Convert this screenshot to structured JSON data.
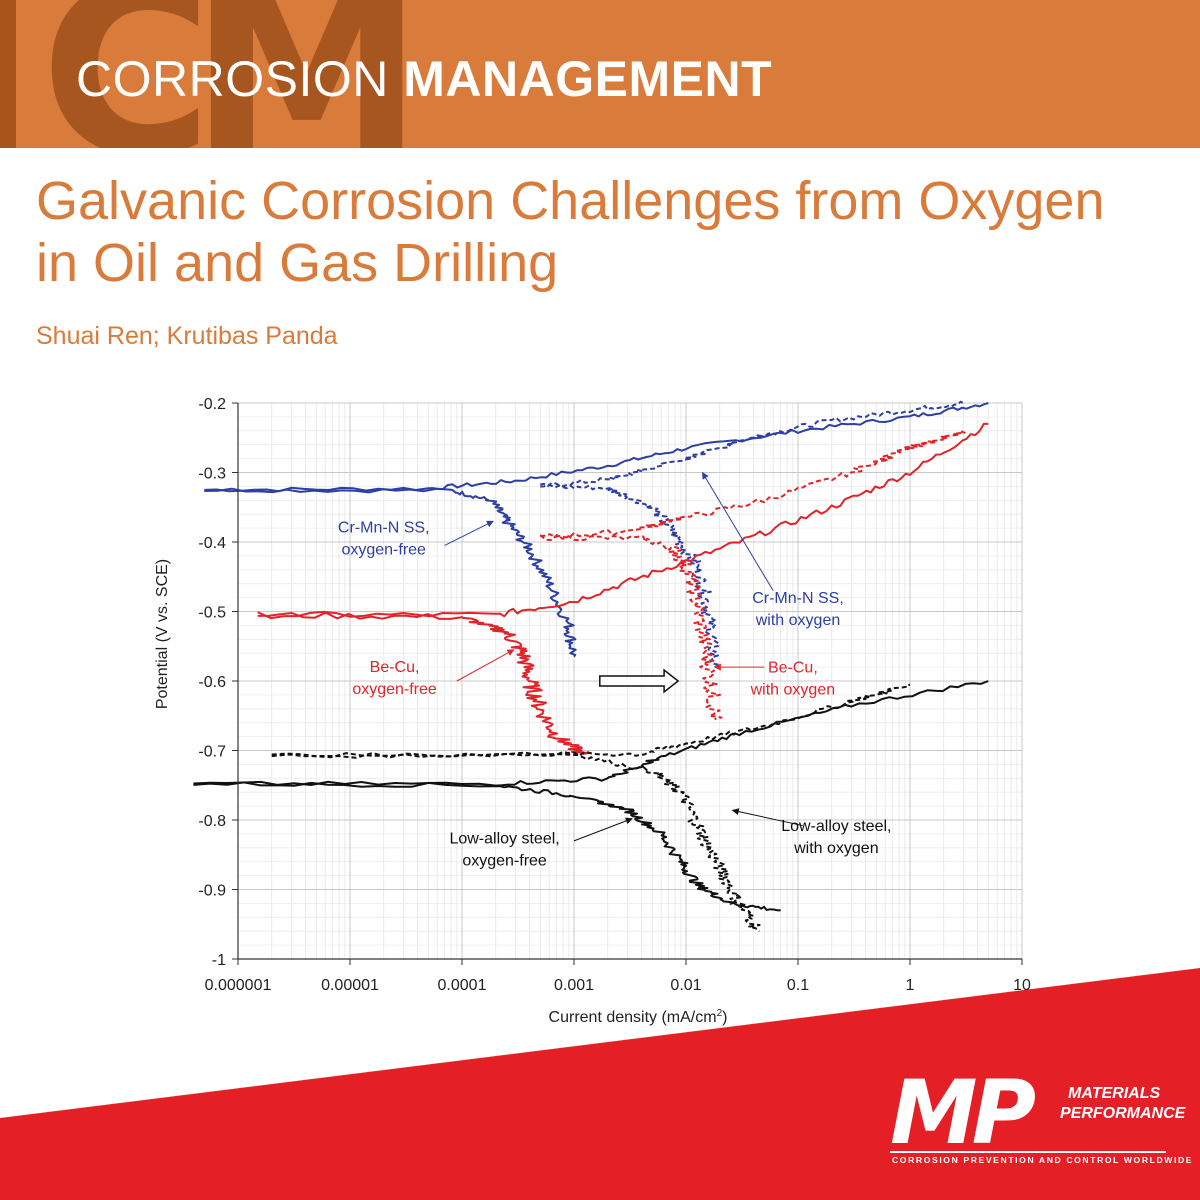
{
  "header": {
    "logo_letters": "CM",
    "title_light": "CORROSION",
    "title_bold": "MANAGEMENT"
  },
  "article": {
    "title": "Galvanic Corrosion Challenges from Oxygen in Oil and Gas Drilling",
    "authors": "Shuai Ren; Krutibas Panda"
  },
  "chart_data": {
    "type": "line",
    "xscale": "log",
    "xlabel": "Current density (mA/cm",
    "xlabel_sup": "2",
    "xlabel_end": ")",
    "ylabel": "Potential (V vs. SCE)",
    "xlim": [
      1e-06,
      10
    ],
    "ylim": [
      -1,
      -0.2
    ],
    "xticks": [
      {
        "value": 1e-06,
        "label": "0.000001"
      },
      {
        "value": 1e-05,
        "label": "0.00001"
      },
      {
        "value": 0.0001,
        "label": "0.0001"
      },
      {
        "value": 0.001,
        "label": "0.001"
      },
      {
        "value": 0.01,
        "label": "0.01"
      },
      {
        "value": 0.1,
        "label": "0.1"
      },
      {
        "value": 1,
        "label": "1"
      },
      {
        "value": 10,
        "label": "10"
      }
    ],
    "yticks": [
      {
        "value": -0.2,
        "label": "-0.2"
      },
      {
        "value": -0.3,
        "label": "-0.3"
      },
      {
        "value": -0.4,
        "label": "-0.4"
      },
      {
        "value": -0.5,
        "label": "-0.5"
      },
      {
        "value": -0.6,
        "label": "-0.6"
      },
      {
        "value": -0.7,
        "label": "-0.7"
      },
      {
        "value": -0.8,
        "label": "-0.8"
      },
      {
        "value": -0.9,
        "label": "-0.9"
      },
      {
        "value": -1,
        "label": "-1"
      }
    ],
    "grid": true,
    "series": [
      {
        "name": "Cr-Mn-N SS, oxygen-free",
        "color": "#2e3fa3",
        "dash": false,
        "noise": 0.006,
        "anodic": [
          [
            5e-07,
            -0.325
          ],
          [
            5e-05,
            -0.323
          ],
          [
            0.0003,
            -0.312
          ],
          [
            0.002,
            -0.29
          ],
          [
            0.01,
            -0.265
          ],
          [
            0.1,
            -0.24
          ],
          [
            1,
            -0.22
          ],
          [
            5,
            -0.2
          ]
        ],
        "cathodic": [
          [
            5e-07,
            -0.325
          ],
          [
            8e-05,
            -0.326
          ],
          [
            0.00018,
            -0.34
          ],
          [
            0.00025,
            -0.37
          ],
          [
            0.0004,
            -0.41
          ],
          [
            0.0006,
            -0.46
          ],
          [
            0.0009,
            -0.52
          ],
          [
            0.001,
            -0.565
          ]
        ]
      },
      {
        "name": "Cr-Mn-N SS, with oxygen",
        "color": "#2e3fa3",
        "dash": true,
        "noise": 0.007,
        "anodic": [
          [
            0.0005,
            -0.32
          ],
          [
            0.002,
            -0.31
          ],
          [
            0.006,
            -0.29
          ],
          [
            0.02,
            -0.265
          ],
          [
            0.05,
            -0.245
          ],
          [
            0.2,
            -0.225
          ],
          [
            1,
            -0.21
          ],
          [
            3,
            -0.2
          ]
        ],
        "cathodic": [
          [
            0.0005,
            -0.32
          ],
          [
            0.002,
            -0.322
          ],
          [
            0.005,
            -0.35
          ],
          [
            0.008,
            -0.39
          ],
          [
            0.012,
            -0.43
          ],
          [
            0.015,
            -0.48
          ],
          [
            0.017,
            -0.53
          ],
          [
            0.018,
            -0.58
          ]
        ]
      },
      {
        "name": "Be-Cu, oxygen-free",
        "color": "#e0242a",
        "dash": false,
        "noise": 0.009,
        "anodic": [
          [
            1.5e-06,
            -0.505
          ],
          [
            0.0002,
            -0.505
          ],
          [
            0.001,
            -0.485
          ],
          [
            0.005,
            -0.445
          ],
          [
            0.03,
            -0.4
          ],
          [
            0.2,
            -0.35
          ],
          [
            1,
            -0.3
          ],
          [
            5,
            -0.23
          ]
        ],
        "cathodic": [
          [
            1.5e-06,
            -0.505
          ],
          [
            0.0001,
            -0.508
          ],
          [
            0.00025,
            -0.53
          ],
          [
            0.00035,
            -0.56
          ],
          [
            0.0004,
            -0.6
          ],
          [
            0.0005,
            -0.64
          ],
          [
            0.0007,
            -0.68
          ],
          [
            0.0012,
            -0.705
          ]
        ]
      },
      {
        "name": "Be-Cu, with oxygen",
        "color": "#e0242a",
        "dash": true,
        "noise": 0.008,
        "anodic": [
          [
            0.0005,
            -0.393
          ],
          [
            0.003,
            -0.385
          ],
          [
            0.01,
            -0.365
          ],
          [
            0.05,
            -0.34
          ],
          [
            0.3,
            -0.3
          ],
          [
            1,
            -0.265
          ],
          [
            3,
            -0.24
          ]
        ],
        "cathodic": [
          [
            0.0005,
            -0.393
          ],
          [
            0.004,
            -0.395
          ],
          [
            0.008,
            -0.41
          ],
          [
            0.011,
            -0.45
          ],
          [
            0.013,
            -0.5
          ],
          [
            0.015,
            -0.56
          ],
          [
            0.017,
            -0.61
          ],
          [
            0.018,
            -0.655
          ]
        ]
      },
      {
        "name": "Low-alloy steel, oxygen-free",
        "color": "#111111",
        "dash": false,
        "noise": 0.006,
        "anodic": [
          [
            4e-07,
            -0.748
          ],
          [
            0.0002,
            -0.748
          ],
          [
            0.002,
            -0.74
          ],
          [
            0.006,
            -0.71
          ],
          [
            0.03,
            -0.675
          ],
          [
            0.3,
            -0.635
          ],
          [
            5,
            -0.6
          ]
        ],
        "cathodic": [
          [
            4e-07,
            -0.748
          ],
          [
            0.0002,
            -0.75
          ],
          [
            0.001,
            -0.765
          ],
          [
            0.003,
            -0.785
          ],
          [
            0.006,
            -0.82
          ],
          [
            0.009,
            -0.86
          ],
          [
            0.013,
            -0.895
          ],
          [
            0.025,
            -0.92
          ],
          [
            0.07,
            -0.93
          ]
        ]
      },
      {
        "name": "Low-alloy steel, with oxygen",
        "color": "#111111",
        "dash": true,
        "noise": 0.007,
        "anodic": [
          [
            2e-06,
            -0.708
          ],
          [
            0.0005,
            -0.705
          ],
          [
            0.004,
            -0.705
          ],
          [
            0.01,
            -0.69
          ],
          [
            0.05,
            -0.665
          ],
          [
            0.3,
            -0.63
          ],
          [
            1,
            -0.605
          ]
        ],
        "cathodic": [
          [
            2e-06,
            -0.708
          ],
          [
            0.001,
            -0.705
          ],
          [
            0.005,
            -0.73
          ],
          [
            0.009,
            -0.76
          ],
          [
            0.012,
            -0.8
          ],
          [
            0.016,
            -0.84
          ],
          [
            0.022,
            -0.88
          ],
          [
            0.03,
            -0.92
          ],
          [
            0.045,
            -0.96
          ]
        ]
      }
    ],
    "annotations": [
      {
        "lines": [
          "Cr-Mn-N SS,",
          "oxygen-free"
        ],
        "color": "#2e3fa3",
        "anchor": "middle",
        "x": 2e-05,
        "y": -0.386,
        "arrow_from": [
          7e-05,
          -0.405
        ],
        "arrow_to": [
          0.00019,
          -0.37
        ]
      },
      {
        "lines": [
          "Cr-Mn-N SS,",
          "with oxygen"
        ],
        "color": "#2e3fa3",
        "anchor": "middle",
        "x": 0.1,
        "y": -0.488,
        "arrow_from": [
          0.06,
          -0.47
        ],
        "arrow_to": [
          0.014,
          -0.3
        ]
      },
      {
        "lines": [
          "Be-Cu,",
          "oxygen-free"
        ],
        "color": "#e0242a",
        "anchor": "middle",
        "x": 2.5e-05,
        "y": -0.587,
        "arrow_from": [
          9e-05,
          -0.6
        ],
        "arrow_to": [
          0.00029,
          -0.555
        ]
      },
      {
        "lines": [
          "Be-Cu,",
          "with oxygen"
        ],
        "color": "#e0242a",
        "anchor": "middle",
        "x": 0.09,
        "y": -0.588,
        "arrow_from": [
          0.05,
          -0.58
        ],
        "arrow_to": [
          0.018,
          -0.58
        ]
      },
      {
        "lines": [
          "Low-alloy steel,",
          "oxygen-free"
        ],
        "color": "#111111",
        "anchor": "middle",
        "x": 0.00024,
        "y": -0.834,
        "arrow_from": [
          0.001,
          -0.83
        ],
        "arrow_to": [
          0.0033,
          -0.798
        ]
      },
      {
        "lines": [
          "Low-alloy steel,",
          "with oxygen"
        ],
        "color": "#111111",
        "anchor": "middle",
        "x": 0.22,
        "y": -0.816,
        "arrow_from": [
          0.11,
          -0.808
        ],
        "arrow_to": [
          0.026,
          -0.786
        ]
      }
    ],
    "shift_arrow": {
      "from": [
        0.0017,
        -0.6
      ],
      "to": [
        0.0085,
        -0.6
      ],
      "color": "#111111"
    }
  },
  "logo": {
    "letters": "MP",
    "line1": "MATERIALS",
    "line2": "PERFORMANCE",
    "tagline": "CORROSION PREVENTION AND CONTROL WORLDWIDE",
    "band_color": "#e41f26"
  }
}
